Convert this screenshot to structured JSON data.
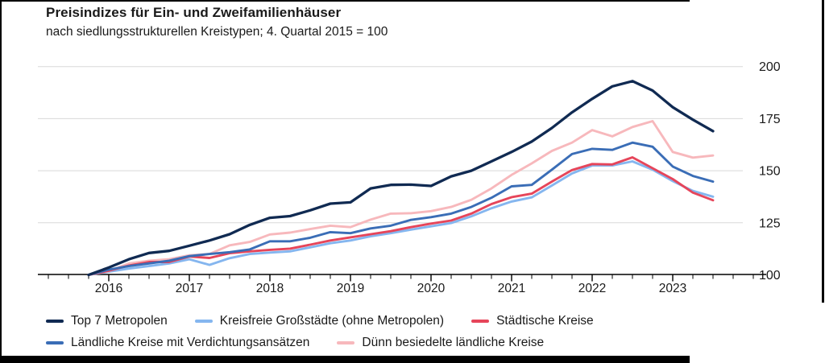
{
  "header": {
    "title": "Preisindizes für Ein- und Zweifamilienhäuser",
    "subtitle": "nach siedlungsstrukturellen Kreistypen; 4. Quartal 2015 = 100"
  },
  "chart_data": {
    "type": "line",
    "title": "Preisindizes für Ein- und Zweifamilienhäuser",
    "subtitle": "nach siedlungsstrukturellen Kreistypen; 4. Quartal 2015 = 100",
    "index_base": "4. Quartal 2015 = 100",
    "grid": true,
    "legend_position": "bottom-left",
    "ylim": [
      100,
      200
    ],
    "y_ticks": [
      100,
      125,
      150,
      175,
      200
    ],
    "x_year_labels": [
      "2016",
      "2017",
      "2018",
      "2019",
      "2020",
      "2021",
      "2022",
      "2023"
    ],
    "x_quarters": [
      "2015-Q4",
      "2016-Q1",
      "2016-Q2",
      "2016-Q3",
      "2016-Q4",
      "2017-Q1",
      "2017-Q2",
      "2017-Q3",
      "2017-Q4",
      "2018-Q1",
      "2018-Q2",
      "2018-Q3",
      "2018-Q4",
      "2019-Q1",
      "2019-Q2",
      "2019-Q3",
      "2019-Q4",
      "2020-Q1",
      "2020-Q2",
      "2020-Q3",
      "2020-Q4",
      "2021-Q1",
      "2021-Q2",
      "2021-Q3",
      "2021-Q4",
      "2022-Q1",
      "2022-Q2",
      "2022-Q3",
      "2022-Q4",
      "2023-Q1",
      "2023-Q2",
      "2023-Q3"
    ],
    "series": [
      {
        "name": "Top 7 Metropolen",
        "color": "#102a52",
        "values": [
          100,
          103.5,
          107.5,
          110.5,
          111.5,
          114,
          116.5,
          119.5,
          124,
          127.4,
          128.2,
          131,
          134.2,
          134.8,
          141.5,
          143.2,
          143.3,
          142.7,
          147.3,
          150,
          154.5,
          159,
          164,
          170.5,
          178,
          184.5,
          190.5,
          193,
          188.5,
          180.5,
          174.5,
          169
        ]
      },
      {
        "name": "Kreisfreie Großstädte (ohne Metropolen)",
        "color": "#85b6ef",
        "values": [
          100,
          101.5,
          103,
          104.2,
          105.5,
          107.5,
          104.8,
          108,
          110,
          110.7,
          111.3,
          113.2,
          115.2,
          116.5,
          118.5,
          120,
          121.7,
          123.3,
          124.9,
          128.1,
          132,
          135.2,
          137.2,
          142.9,
          148.7,
          152.5,
          152.5,
          154.5,
          150.5,
          145,
          140.3,
          137.5
        ]
      },
      {
        "name": "Städtische Kreise",
        "color": "#e6455a",
        "values": [
          100,
          102,
          104.5,
          106.2,
          106.2,
          108.8,
          108.1,
          110.4,
          111.3,
          112,
          112.6,
          114.5,
          116.5,
          118,
          119.5,
          121,
          122.9,
          124.6,
          126.1,
          129.4,
          134,
          137.3,
          139,
          144.8,
          150.3,
          153.2,
          153,
          156.4,
          151.2,
          146,
          139.5,
          135.8
        ]
      },
      {
        "name": "Ländliche Kreise mit Verdichtungsansätzen",
        "color": "#3a6db6",
        "values": [
          100,
          102.5,
          104.2,
          105.5,
          106.8,
          109,
          110,
          110.9,
          112.2,
          116.1,
          116.1,
          117.8,
          120.5,
          120,
          122.3,
          123.6,
          126.4,
          127.7,
          129.4,
          132.6,
          137,
          142.5,
          143.2,
          150.5,
          158,
          160.5,
          160,
          163.5,
          161.5,
          152,
          147.5,
          144.8
        ]
      },
      {
        "name": "Dünn besiedelte ländliche Kreise",
        "color": "#f7b8bc",
        "values": [
          100,
          101.8,
          105.5,
          106.8,
          107.5,
          109.4,
          110,
          114.2,
          115.8,
          119.4,
          120.3,
          122,
          123.6,
          122.9,
          126.5,
          129.4,
          129.6,
          130.6,
          132.6,
          136,
          141.5,
          148,
          153.5,
          159.5,
          163.5,
          169.5,
          166.5,
          171,
          173.8,
          159,
          156.3,
          157.3
        ]
      }
    ],
    "draw_order": [
      1,
      4,
      2,
      3,
      0
    ]
  },
  "legend": {
    "rows": [
      [
        0,
        1,
        2
      ],
      [
        3,
        4
      ]
    ]
  }
}
